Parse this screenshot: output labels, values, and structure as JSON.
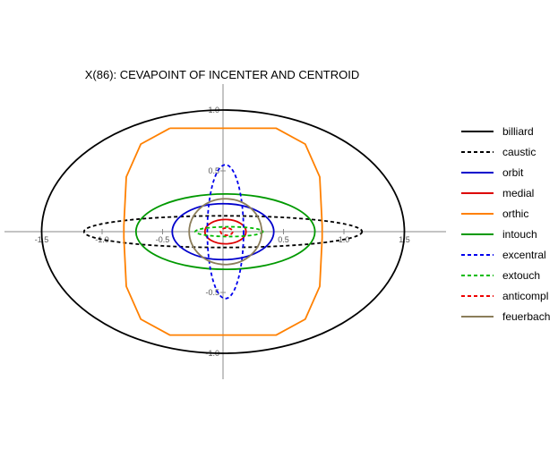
{
  "chart_data": {
    "type": "line",
    "title": "X(86): CEVAPOINT OF INCENTER AND CENTROID",
    "xlabel": "",
    "ylabel": "",
    "xlim": [
      -1.7,
      1.7
    ],
    "ylim": [
      -1.15,
      1.15
    ],
    "x_ticks": [
      {
        "value": -1.5,
        "label": "-1.5"
      },
      {
        "value": -1.0,
        "label": "-1.0"
      },
      {
        "value": -0.5,
        "label": "-0.5"
      },
      {
        "value": 0.5,
        "label": "0.5"
      },
      {
        "value": 1.0,
        "label": "1.0"
      },
      {
        "value": 1.5,
        "label": "1.5"
      }
    ],
    "y_ticks": [
      {
        "value": 1.0,
        "label": "1.0"
      },
      {
        "value": 0.5,
        "label": "0.5"
      },
      {
        "value": -0.5,
        "label": "-0.5"
      },
      {
        "value": -1.0,
        "label": "-1.0"
      }
    ],
    "grid": false,
    "legend_position": "right",
    "series": [
      {
        "name": "billiard",
        "color": "#000000",
        "dashed": false,
        "shape": "ellipse",
        "center": [
          0,
          0
        ],
        "rx": 1.5,
        "ry": 1.0
      },
      {
        "name": "caustic",
        "color": "#000000",
        "dashed": true,
        "shape": "ellipse",
        "center": [
          0,
          0
        ],
        "rx": 1.15,
        "ry": 0.13
      },
      {
        "name": "orbit",
        "color": "#0000cc",
        "dashed": false,
        "shape": "ellipse",
        "center": [
          0,
          0
        ],
        "rx": 0.42,
        "ry": 0.23
      },
      {
        "name": "medial",
        "color": "#dd0000",
        "dashed": false,
        "shape": "ellipse",
        "center": [
          0.02,
          0
        ],
        "rx": 0.17,
        "ry": 0.1
      },
      {
        "name": "orthic",
        "color": "#ff8000",
        "dashed": false,
        "shape": "polyline",
        "points": [
          [
            -0.44,
            0.85
          ],
          [
            0.44,
            0.85
          ],
          [
            0.68,
            0.72
          ],
          [
            0.8,
            0.45
          ],
          [
            0.82,
            0.05
          ],
          [
            0.82,
            -0.05
          ],
          [
            0.8,
            -0.45
          ],
          [
            0.68,
            -0.72
          ],
          [
            0.44,
            -0.85
          ],
          [
            -0.44,
            -0.85
          ],
          [
            -0.68,
            -0.72
          ],
          [
            -0.8,
            -0.45
          ],
          [
            -0.82,
            -0.05
          ],
          [
            -0.82,
            0.05
          ],
          [
            -0.8,
            0.45
          ],
          [
            -0.68,
            0.72
          ],
          [
            -0.44,
            0.85
          ]
        ]
      },
      {
        "name": "intouch",
        "color": "#009900",
        "dashed": false,
        "shape": "ellipse",
        "center": [
          0.02,
          0
        ],
        "rx": 0.74,
        "ry": 0.31
      },
      {
        "name": "excentral",
        "color": "#0000ee",
        "dashed": true,
        "shape": "ellipse",
        "center": [
          0.02,
          0
        ],
        "rx": 0.15,
        "ry": 0.55
      },
      {
        "name": "extouch",
        "color": "#00bb00",
        "dashed": true,
        "shape": "ellipse",
        "center": [
          0.05,
          0
        ],
        "rx": 0.28,
        "ry": 0.04
      },
      {
        "name": "anticompl",
        "color": "#ee0000",
        "dashed": true,
        "shape": "ellipse",
        "center": [
          0.03,
          0
        ],
        "rx": 0.05,
        "ry": 0.03
      },
      {
        "name": "feuerbach",
        "color": "#8b7d5a",
        "dashed": false,
        "shape": "ellipse",
        "center": [
          0.02,
          0
        ],
        "rx": 0.3,
        "ry": 0.27
      }
    ]
  }
}
